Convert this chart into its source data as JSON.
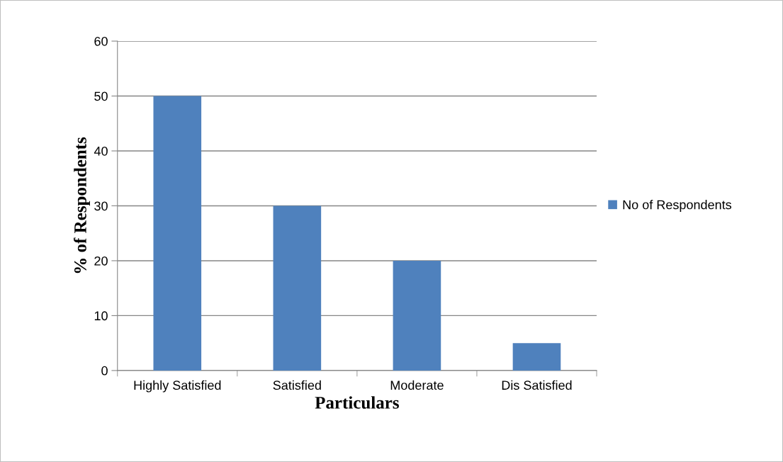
{
  "chart_data": {
    "type": "bar",
    "xlabel": "Particulars",
    "ylabel": "% of Respondents",
    "categories": [
      "Highly Satisfied",
      "Satisfied",
      "Moderate",
      "Dis Satisfied"
    ],
    "series": [
      {
        "name": "No of Respondents",
        "color": "#4f81bd",
        "values": [
          50,
          30,
          20,
          5
        ]
      }
    ],
    "ylim": [
      0,
      60
    ],
    "yticks": [
      0,
      10,
      20,
      30,
      40,
      50,
      60
    ],
    "grid": "y",
    "legend": "right"
  }
}
